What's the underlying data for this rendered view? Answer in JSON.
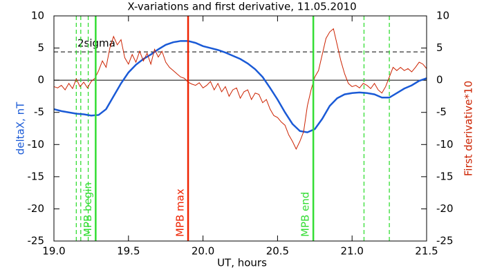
{
  "chart_data": {
    "type": "line",
    "title": "X-variations and first derivative, 11.05.2010",
    "x_label": "UT, hours",
    "y_label": "deltaX, nT",
    "y2_label": "First derivative*10",
    "xlim": [
      19.0,
      21.5
    ],
    "xticks": [
      {
        "value": 19.0,
        "label": "19.0"
      },
      {
        "value": 19.5,
        "label": "19.5"
      },
      {
        "value": 20.0,
        "label": "20.0"
      },
      {
        "value": 20.5,
        "label": "20.5"
      },
      {
        "value": 21.0,
        "label": "21.0"
      },
      {
        "value": 21.5,
        "label": "21.5"
      }
    ],
    "ylim": [
      -25,
      10
    ],
    "yticks": [
      10,
      5,
      0,
      -5,
      -10,
      -15,
      -20,
      -25
    ],
    "y2lim": [
      -25,
      10
    ],
    "y2ticks": [
      10,
      5,
      0,
      -5,
      -10,
      -15,
      -20,
      -25
    ],
    "series": [
      {
        "name": "deltaX, nT",
        "color": "#1a5ad6",
        "x": [
          19.0,
          19.05,
          19.1,
          19.15,
          19.2,
          19.25,
          19.3,
          19.35,
          19.4,
          19.45,
          19.5,
          19.55,
          19.6,
          19.65,
          19.7,
          19.75,
          19.8,
          19.85,
          19.9,
          19.95,
          20.0,
          20.05,
          20.1,
          20.15,
          20.2,
          20.25,
          20.3,
          20.35,
          20.4,
          20.45,
          20.5,
          20.55,
          20.6,
          20.65,
          20.7,
          20.75,
          20.8,
          20.85,
          20.9,
          20.95,
          21.0,
          21.05,
          21.1,
          21.15,
          21.2,
          21.25,
          21.3,
          21.35,
          21.4,
          21.45,
          21.5
        ],
        "values": [
          -4.5,
          -4.8,
          -5.0,
          -5.2,
          -5.3,
          -5.5,
          -5.4,
          -4.5,
          -2.5,
          -0.5,
          1.2,
          2.4,
          3.3,
          4.0,
          4.8,
          5.5,
          5.9,
          6.1,
          6.1,
          5.8,
          5.3,
          5.0,
          4.7,
          4.3,
          3.8,
          3.3,
          2.6,
          1.7,
          0.5,
          -1.2,
          -3.0,
          -5.0,
          -6.8,
          -7.9,
          -8.1,
          -7.6,
          -6.0,
          -4.0,
          -2.8,
          -2.2,
          -2.0,
          -1.9,
          -2.0,
          -2.2,
          -2.7,
          -2.7,
          -2.0,
          -1.3,
          -0.8,
          -0.1,
          0.3
        ]
      },
      {
        "name": "First derivative*10",
        "color": "#cc2200",
        "axis": "y2",
        "x": [
          19.0,
          19.025,
          19.05,
          19.075,
          19.1,
          19.125,
          19.15,
          19.175,
          19.2,
          19.225,
          19.25,
          19.275,
          19.3,
          19.325,
          19.35,
          19.375,
          19.4,
          19.425,
          19.45,
          19.475,
          19.5,
          19.525,
          19.55,
          19.575,
          19.6,
          19.625,
          19.65,
          19.675,
          19.7,
          19.725,
          19.75,
          19.775,
          19.8,
          19.825,
          19.85,
          19.875,
          19.9,
          19.925,
          19.95,
          19.975,
          20.0,
          20.025,
          20.05,
          20.075,
          20.1,
          20.125,
          20.15,
          20.175,
          20.2,
          20.225,
          20.25,
          20.275,
          20.3,
          20.325,
          20.35,
          20.375,
          20.4,
          20.425,
          20.45,
          20.475,
          20.5,
          20.525,
          20.55,
          20.575,
          20.6,
          20.625,
          20.65,
          20.675,
          20.7,
          20.725,
          20.75,
          20.775,
          20.8,
          20.825,
          20.85,
          20.875,
          20.9,
          20.925,
          20.95,
          20.975,
          21.0,
          21.025,
          21.05,
          21.075,
          21.1,
          21.125,
          21.15,
          21.175,
          21.2,
          21.225,
          21.25,
          21.275,
          21.3,
          21.325,
          21.35,
          21.375,
          21.4,
          21.425,
          21.45,
          21.475,
          21.5
        ],
        "values": [
          -1,
          -1.2,
          -0.8,
          -1.5,
          -0.5,
          -1.3,
          0.2,
          -1.0,
          -0.3,
          -1.2,
          -0.2,
          0.3,
          1.5,
          3.0,
          2.0,
          5.0,
          6.8,
          5.5,
          6.3,
          3.5,
          2.5,
          4.0,
          2.8,
          4.5,
          3.0,
          4.2,
          2.5,
          4.8,
          3.6,
          4.5,
          2.8,
          2.0,
          1.5,
          1.0,
          0.5,
          0.3,
          -0.3,
          -0.6,
          -0.8,
          -0.4,
          -1.2,
          -0.8,
          -0.2,
          -1.5,
          -0.5,
          -1.8,
          -1.0,
          -2.5,
          -1.5,
          -1.2,
          -2.8,
          -1.8,
          -1.5,
          -3.0,
          -2.0,
          -2.2,
          -3.5,
          -3.0,
          -4.5,
          -5.5,
          -5.8,
          -6.5,
          -7.0,
          -8.5,
          -9.5,
          -10.7,
          -9.5,
          -8.0,
          -4.0,
          -1.5,
          0.5,
          1.5,
          4.0,
          6.5,
          7.5,
          8.0,
          5.5,
          3.0,
          1.0,
          -0.5,
          -1.0,
          -0.8,
          -1.2,
          -0.5,
          -0.8,
          -1.3,
          -0.5,
          -1.5,
          -2.0,
          -1.0,
          0.5,
          2.0,
          1.5,
          2.0,
          1.5,
          1.8,
          1.3,
          2.0,
          2.8,
          2.5,
          1.8
        ]
      }
    ],
    "threshold": {
      "value": 4.4,
      "label": "2sigma"
    },
    "markers": [
      {
        "x": 19.28,
        "label": "MPB begin",
        "color": "#33dd33"
      },
      {
        "x": 19.9,
        "label": "MPB max",
        "color": "#ee2200"
      },
      {
        "x": 20.74,
        "label": "MPB end",
        "color": "#33dd33"
      }
    ],
    "dashed_markers": [
      19.15,
      19.18,
      19.23,
      21.08,
      21.25
    ],
    "dashed_color": "#33dd33"
  }
}
